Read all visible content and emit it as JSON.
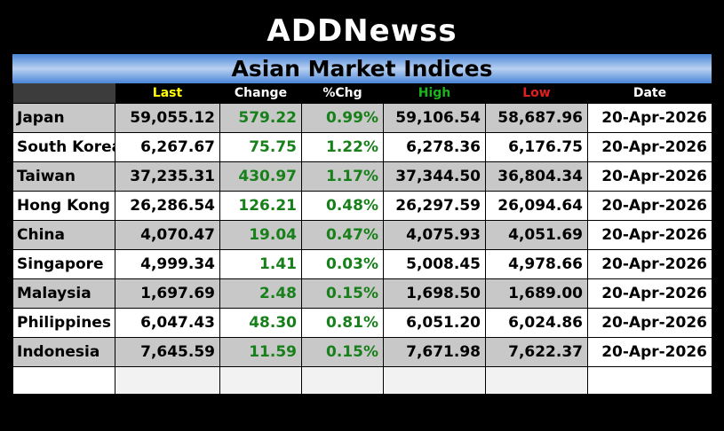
{
  "brand": {
    "prefix": "ADD",
    "accent": "N",
    "suffix": "ewss"
  },
  "title": "Asian Market Indices",
  "columns": [
    {
      "label": "",
      "color": "#ffffff"
    },
    {
      "label": "Last",
      "color": "#ffff00"
    },
    {
      "label": "Change",
      "color": "#ffffff"
    },
    {
      "label": "%Chg",
      "color": "#ffffff"
    },
    {
      "label": "High",
      "color": "#1db31d"
    },
    {
      "label": "Low",
      "color": "#e02020"
    },
    {
      "label": "Date",
      "color": "#ffffff"
    }
  ],
  "rows": [
    {
      "name": "Japan",
      "last": "59,055.12",
      "change": "579.22",
      "pct": "0.99%",
      "high": "59,106.54",
      "low": "58,687.96",
      "date": "20-Apr-2026"
    },
    {
      "name": "South Korea",
      "last": "6,267.67",
      "change": "75.75",
      "pct": "1.22%",
      "high": "6,278.36",
      "low": "6,176.75",
      "date": "20-Apr-2026"
    },
    {
      "name": "Taiwan",
      "last": "37,235.31",
      "change": "430.97",
      "pct": "1.17%",
      "high": "37,344.50",
      "low": "36,804.34",
      "date": "20-Apr-2026"
    },
    {
      "name": "Hong Kong",
      "last": "26,286.54",
      "change": "126.21",
      "pct": "0.48%",
      "high": "26,297.59",
      "low": "26,094.64",
      "date": "20-Apr-2026"
    },
    {
      "name": "China",
      "last": "4,070.47",
      "change": "19.04",
      "pct": "0.47%",
      "high": "4,075.93",
      "low": "4,051.69",
      "date": "20-Apr-2026"
    },
    {
      "name": "Singapore",
      "last": "4,999.34",
      "change": "1.41",
      "pct": "0.03%",
      "high": "5,008.45",
      "low": "4,978.66",
      "date": "20-Apr-2026"
    },
    {
      "name": "Malaysia",
      "last": "1,697.69",
      "change": "2.48",
      "pct": "0.15%",
      "high": "1,698.50",
      "low": "1,689.00",
      "date": "20-Apr-2026"
    },
    {
      "name": "Philippines",
      "last": "6,047.43",
      "change": "48.30",
      "pct": "0.81%",
      "high": "6,051.20",
      "low": "6,024.86",
      "date": "20-Apr-2026"
    },
    {
      "name": "Indonesia",
      "last": "7,645.59",
      "change": "11.59",
      "pct": "0.15%",
      "high": "7,671.98",
      "low": "7,622.37",
      "date": "20-Apr-2026"
    }
  ],
  "colors": {
    "positive": "#18801a",
    "row_shade": "#c8c8c8",
    "title_bar": "#4a86d8"
  }
}
